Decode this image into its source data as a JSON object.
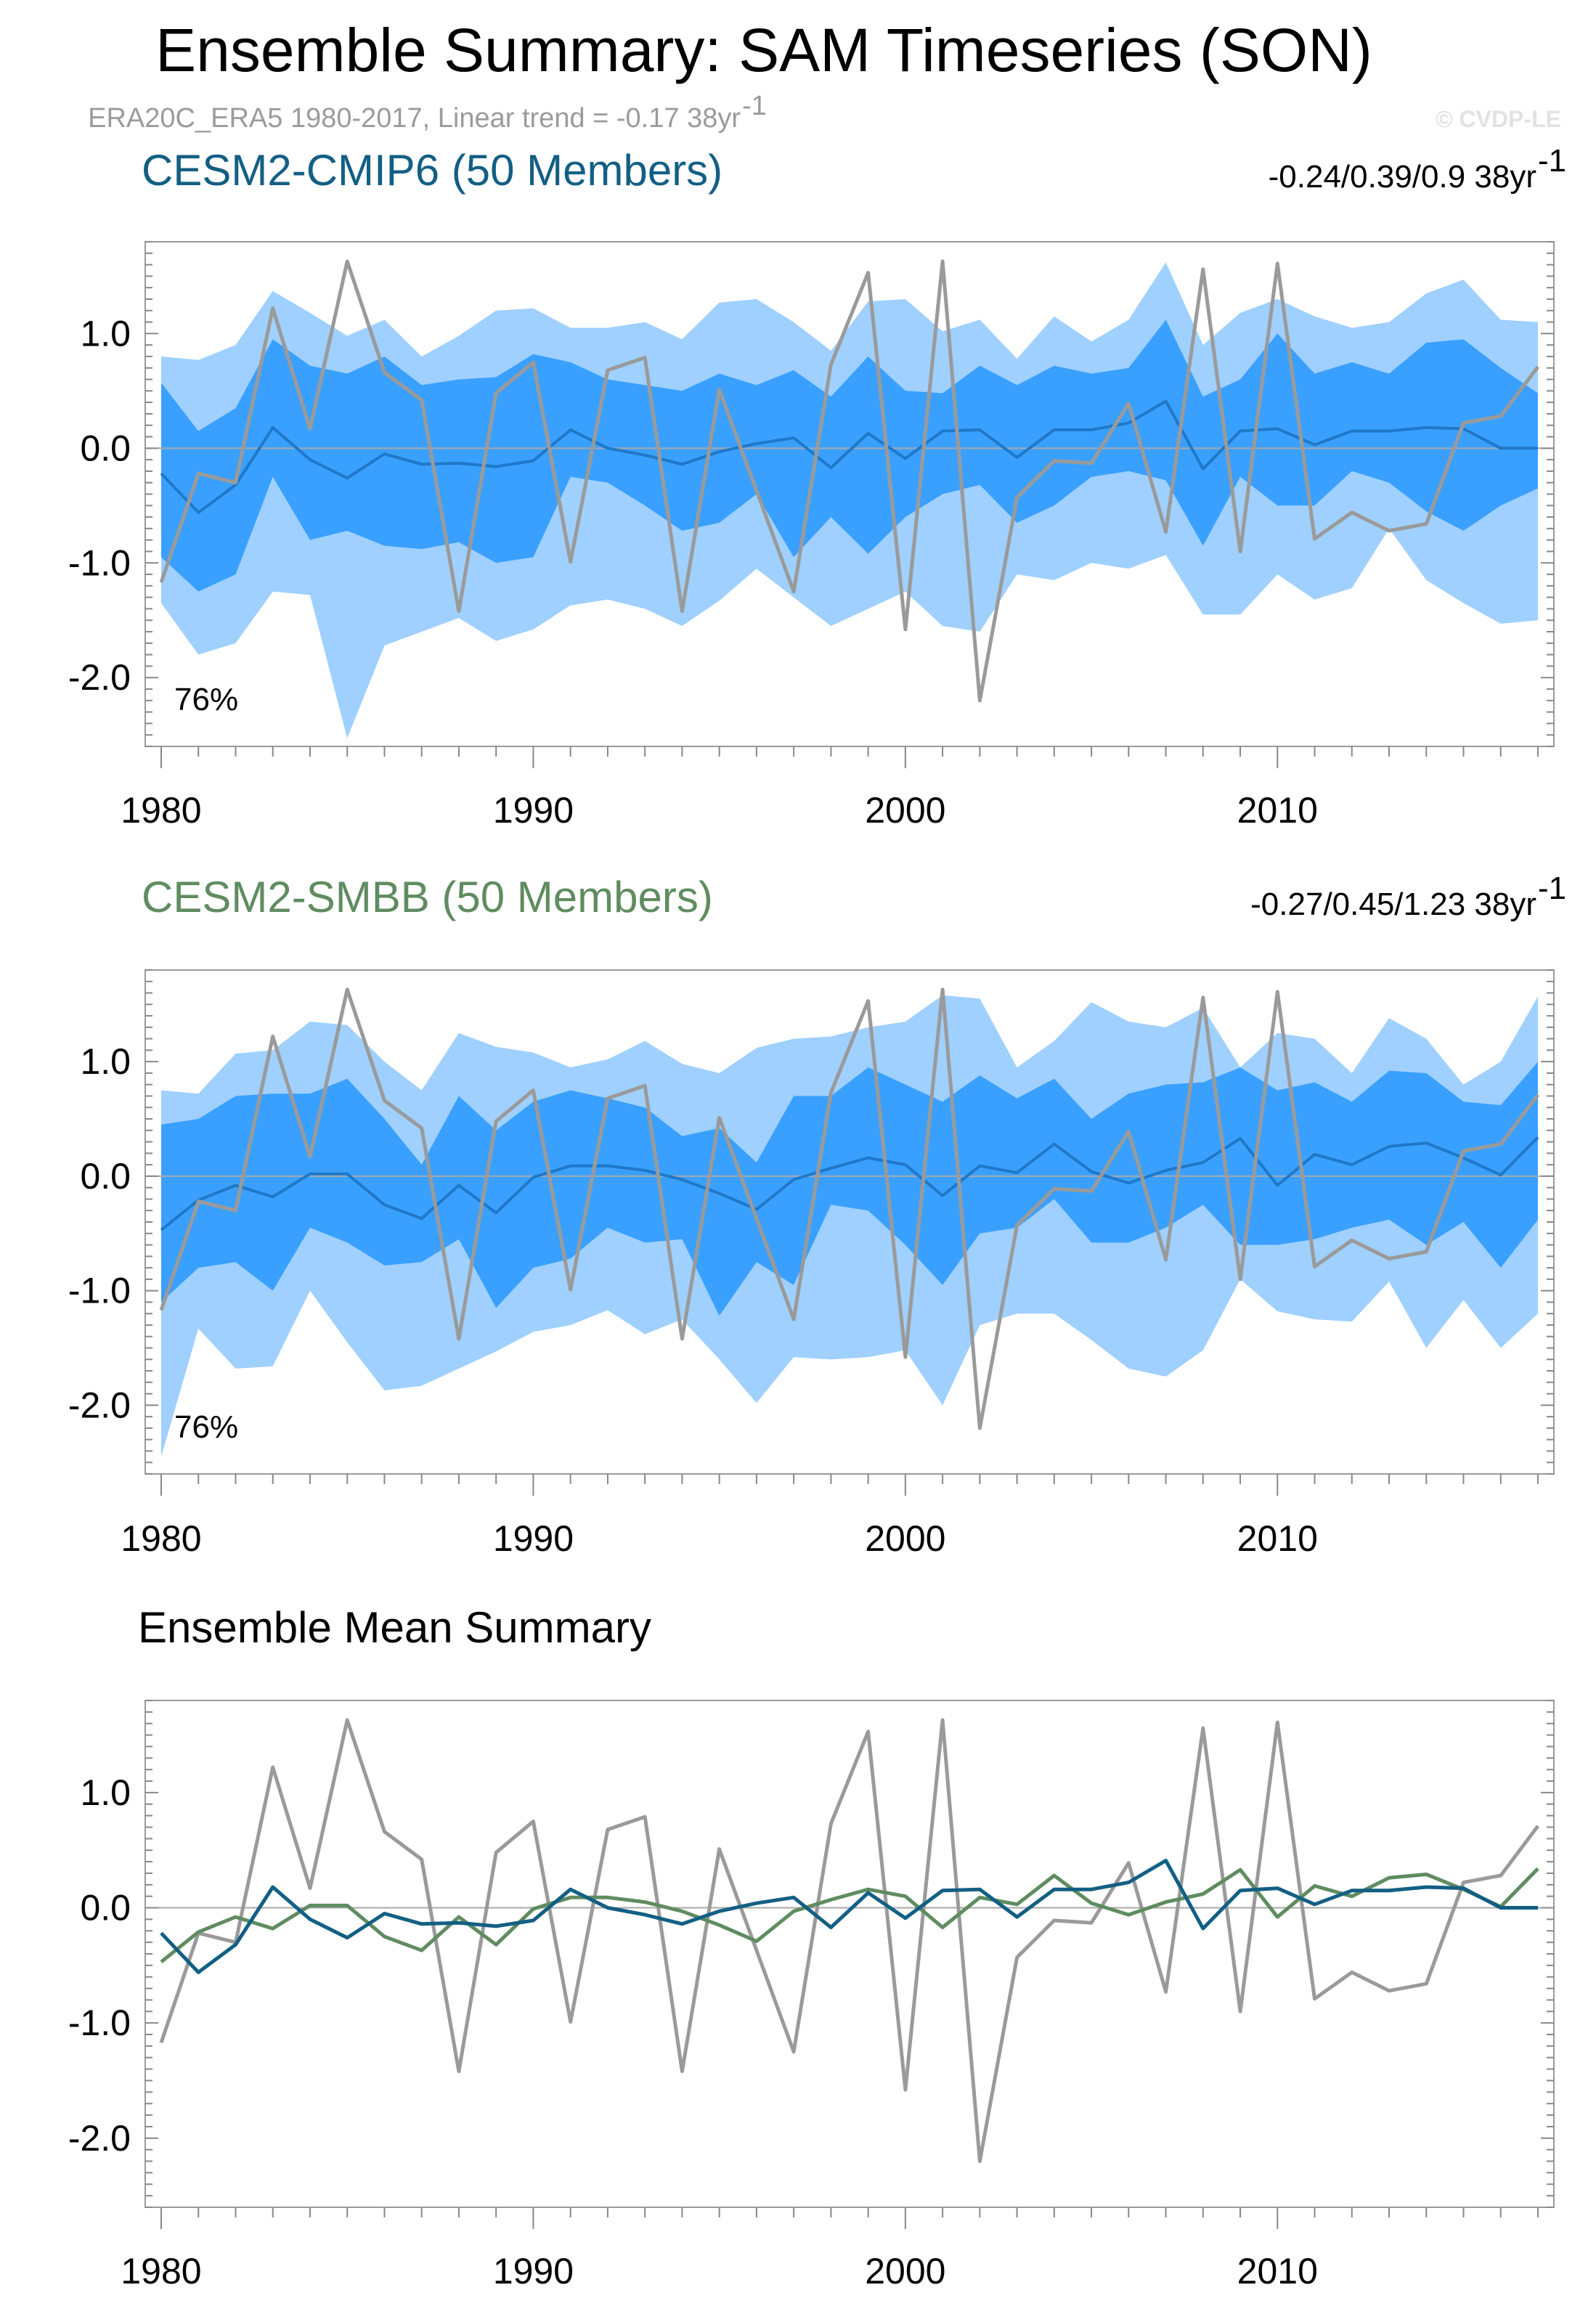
{
  "title": "Ensemble Summary: SAM Timeseries (SON)",
  "subtitle": "ERA20C_ERA5 1980-2017, Linear trend = -0.17 38yr",
  "subtitle_sup": "-1",
  "credit": "© CVDP-LE",
  "colors": {
    "obs": "#9a9a9a",
    "band_outer": "#9fd0ff",
    "band_inner": "#3aa0ff",
    "mean_line": "#1f78c8",
    "cmip6": "#135f84",
    "smbb": "#5f8c60",
    "zero_line": "#a8a8a8"
  },
  "chart_data": [
    {
      "type": "area",
      "title": "CESM2-CMIP6 (50 Members)",
      "title_color": "#135f84",
      "stat": "-0.24/0.39/0.9 38yr",
      "stat_sup": "-1",
      "percent_label": "76%",
      "xlim": [
        1980,
        2017
      ],
      "ylim": [
        -2.6,
        1.8
      ],
      "xticks": [
        "1980",
        "1990",
        "2000",
        "2010"
      ],
      "yticks": [
        "1.0",
        "0.0",
        "-1.0",
        "-2.0"
      ],
      "x": [
        1980,
        1981,
        1982,
        1983,
        1984,
        1985,
        1986,
        1987,
        1988,
        1989,
        1990,
        1991,
        1992,
        1993,
        1994,
        1995,
        1996,
        1997,
        1998,
        1999,
        2000,
        2001,
        2002,
        2003,
        2004,
        2005,
        2006,
        2007,
        2008,
        2009,
        2010,
        2011,
        2012,
        2013,
        2014,
        2015,
        2016,
        2017
      ],
      "series": [
        {
          "name": "min",
          "values": [
            -1.35,
            -1.8,
            -1.7,
            -1.25,
            -1.28,
            -2.53,
            -1.72,
            -1.6,
            -1.48,
            -1.68,
            -1.58,
            -1.37,
            -1.32,
            -1.4,
            -1.55,
            -1.33,
            -1.05,
            -1.3,
            -1.55,
            -1.4,
            -1.25,
            -1.55,
            -1.6,
            -1.1,
            -1.15,
            -1.0,
            -1.05,
            -0.93,
            -1.45,
            -1.45,
            -1.1,
            -1.32,
            -1.22,
            -0.7,
            -1.15,
            -1.35,
            -1.53,
            -1.5
          ]
        },
        {
          "name": "p10",
          "values": [
            -0.95,
            -1.25,
            -1.1,
            -0.25,
            -0.8,
            -0.72,
            -0.85,
            -0.88,
            -0.82,
            -1.0,
            -0.95,
            -0.25,
            -0.3,
            -0.5,
            -0.72,
            -0.65,
            -0.4,
            -0.95,
            -0.6,
            -0.92,
            -0.6,
            -0.4,
            -0.32,
            -0.65,
            -0.5,
            -0.25,
            -0.2,
            -0.28,
            -0.85,
            -0.25,
            -0.5,
            -0.5,
            -0.2,
            -0.3,
            -0.55,
            -0.72,
            -0.5,
            -0.35
          ]
        },
        {
          "name": "mean",
          "values": [
            -0.22,
            -0.56,
            -0.32,
            0.18,
            -0.1,
            -0.26,
            -0.05,
            -0.14,
            -0.13,
            -0.16,
            -0.11,
            0.16,
            0.0,
            -0.06,
            -0.14,
            -0.03,
            0.04,
            0.09,
            -0.17,
            0.13,
            -0.09,
            0.15,
            0.16,
            -0.08,
            0.16,
            0.16,
            0.22,
            0.41,
            -0.18,
            0.15,
            0.17,
            0.03,
            0.15,
            0.15,
            0.18,
            0.17,
            0.0,
            0.0
          ]
        },
        {
          "name": "p90",
          "values": [
            0.57,
            0.15,
            0.35,
            0.95,
            0.72,
            0.65,
            0.8,
            0.55,
            0.6,
            0.62,
            0.82,
            0.75,
            0.6,
            0.55,
            0.5,
            0.65,
            0.55,
            0.68,
            0.45,
            0.8,
            0.5,
            0.48,
            0.72,
            0.55,
            0.72,
            0.65,
            0.7,
            1.12,
            0.45,
            0.6,
            1.0,
            0.65,
            0.75,
            0.65,
            0.92,
            0.95,
            0.7,
            0.48
          ]
        },
        {
          "name": "max",
          "values": [
            0.8,
            0.77,
            0.9,
            1.37,
            1.18,
            0.98,
            1.12,
            0.8,
            0.98,
            1.2,
            1.22,
            1.05,
            1.05,
            1.1,
            0.95,
            1.27,
            1.3,
            1.1,
            0.85,
            1.28,
            1.3,
            1.02,
            1.12,
            0.78,
            1.15,
            0.93,
            1.12,
            1.62,
            0.9,
            1.18,
            1.3,
            1.15,
            1.05,
            1.1,
            1.35,
            1.47,
            1.12,
            1.1
          ]
        },
        {
          "name": "ERA20C_ERA5",
          "values": [
            -1.17,
            -0.22,
            -0.3,
            1.22,
            0.17,
            1.63,
            0.66,
            0.42,
            -1.42,
            0.48,
            0.75,
            -0.99,
            0.68,
            0.79,
            -1.42,
            0.51,
            -0.37,
            -1.25,
            0.73,
            1.53,
            -1.58,
            1.63,
            -2.2,
            -0.43,
            -0.11,
            -0.13,
            0.39,
            -0.73,
            1.56,
            -0.9,
            1.61,
            -0.79,
            -0.56,
            -0.72,
            -0.66,
            0.22,
            0.28,
            0.71
          ]
        }
      ]
    },
    {
      "type": "area",
      "title": "CESM2-SMBB (50 Members)",
      "title_color": "#5f8c60",
      "stat": "-0.27/0.45/1.23 38yr",
      "stat_sup": "-1",
      "percent_label": "76%",
      "xlim": [
        1980,
        2017
      ],
      "ylim": [
        -2.6,
        1.8
      ],
      "xticks": [
        "1980",
        "1990",
        "2000",
        "2010"
      ],
      "yticks": [
        "1.0",
        "0.0",
        "-1.0",
        "-2.0"
      ],
      "x": [
        1980,
        1981,
        1982,
        1983,
        1984,
        1985,
        1986,
        1987,
        1988,
        1989,
        1990,
        1991,
        1992,
        1993,
        1994,
        1995,
        1996,
        1997,
        1998,
        1999,
        2000,
        2001,
        2002,
        2003,
        2004,
        2005,
        2006,
        2007,
        2008,
        2009,
        2010,
        2011,
        2012,
        2013,
        2014,
        2015,
        2016,
        2017
      ],
      "series": [
        {
          "name": "min",
          "values": [
            -2.45,
            -1.33,
            -1.68,
            -1.66,
            -1.0,
            -1.45,
            -1.87,
            -1.83,
            -1.68,
            -1.53,
            -1.36,
            -1.3,
            -1.17,
            -1.38,
            -1.25,
            -1.6,
            -1.98,
            -1.58,
            -1.6,
            -1.58,
            -1.52,
            -2.0,
            -1.3,
            -1.2,
            -1.2,
            -1.43,
            -1.68,
            -1.75,
            -1.52,
            -0.9,
            -1.18,
            -1.25,
            -1.27,
            -0.92,
            -1.5,
            -1.08,
            -1.5,
            -1.2
          ]
        },
        {
          "name": "p10",
          "values": [
            -1.1,
            -0.8,
            -0.75,
            -1.0,
            -0.45,
            -0.58,
            -0.78,
            -0.75,
            -0.55,
            -1.15,
            -0.8,
            -0.72,
            -0.45,
            -0.58,
            -0.55,
            -1.22,
            -0.75,
            -0.95,
            -0.25,
            -0.3,
            -0.6,
            -0.95,
            -0.5,
            -0.45,
            -0.2,
            -0.58,
            -0.58,
            -0.45,
            -0.25,
            -0.6,
            -0.6,
            -0.55,
            -0.45,
            -0.38,
            -0.6,
            -0.4,
            -0.8,
            -0.38
          ]
        },
        {
          "name": "mean",
          "values": [
            -0.47,
            -0.21,
            -0.08,
            -0.18,
            0.02,
            0.02,
            -0.25,
            -0.37,
            -0.08,
            -0.32,
            -0.01,
            0.09,
            0.09,
            0.05,
            -0.03,
            -0.15,
            -0.29,
            -0.03,
            0.07,
            0.16,
            0.1,
            -0.17,
            0.09,
            0.03,
            0.28,
            0.04,
            -0.06,
            0.05,
            0.12,
            0.33,
            -0.08,
            0.19,
            0.1,
            0.26,
            0.29,
            0.16,
            0.01,
            0.34
          ]
        },
        {
          "name": "p90",
          "values": [
            0.45,
            0.5,
            0.7,
            0.72,
            0.72,
            0.85,
            0.5,
            0.1,
            0.7,
            0.4,
            0.65,
            0.75,
            0.68,
            0.6,
            0.35,
            0.42,
            0.12,
            0.7,
            0.7,
            0.95,
            0.8,
            0.65,
            0.88,
            0.68,
            0.85,
            0.5,
            0.72,
            0.8,
            0.82,
            0.95,
            0.75,
            0.82,
            0.65,
            0.92,
            0.9,
            0.65,
            0.62,
            1.0
          ]
        },
        {
          "name": "max",
          "values": [
            0.75,
            0.72,
            1.07,
            1.1,
            1.35,
            1.32,
            1.0,
            0.75,
            1.25,
            1.13,
            1.08,
            0.95,
            1.02,
            1.18,
            0.98,
            0.9,
            1.12,
            1.2,
            1.22,
            1.3,
            1.35,
            1.58,
            1.55,
            0.95,
            1.18,
            1.52,
            1.35,
            1.3,
            1.47,
            0.95,
            1.25,
            1.2,
            0.9,
            1.38,
            1.2,
            0.8,
            1.0,
            1.57
          ]
        },
        {
          "name": "ERA20C_ERA5",
          "values": [
            -1.17,
            -0.22,
            -0.3,
            1.22,
            0.17,
            1.63,
            0.66,
            0.42,
            -1.42,
            0.48,
            0.75,
            -0.99,
            0.68,
            0.79,
            -1.42,
            0.51,
            -0.37,
            -1.25,
            0.73,
            1.53,
            -1.58,
            1.63,
            -2.2,
            -0.43,
            -0.11,
            -0.13,
            0.39,
            -0.73,
            1.56,
            -0.9,
            1.61,
            -0.79,
            -0.56,
            -0.72,
            -0.66,
            0.22,
            0.28,
            0.71
          ]
        }
      ]
    },
    {
      "type": "line",
      "title": "Ensemble Mean Summary",
      "title_color": "#000000",
      "xlim": [
        1980,
        2017
      ],
      "ylim": [
        -2.6,
        1.8
      ],
      "xticks": [
        "1980",
        "1990",
        "2000",
        "2010"
      ],
      "yticks": [
        "1.0",
        "0.0",
        "-1.0",
        "-2.0"
      ],
      "x": [
        1980,
        1981,
        1982,
        1983,
        1984,
        1985,
        1986,
        1987,
        1988,
        1989,
        1990,
        1991,
        1992,
        1993,
        1994,
        1995,
        1996,
        1997,
        1998,
        1999,
        2000,
        2001,
        2002,
        2003,
        2004,
        2005,
        2006,
        2007,
        2008,
        2009,
        2010,
        2011,
        2012,
        2013,
        2014,
        2015,
        2016,
        2017
      ],
      "series": [
        {
          "name": "ERA20C_ERA5",
          "values": [
            -1.17,
            -0.22,
            -0.3,
            1.22,
            0.17,
            1.63,
            0.66,
            0.42,
            -1.42,
            0.48,
            0.75,
            -0.99,
            0.68,
            0.79,
            -1.42,
            0.51,
            -0.37,
            -1.25,
            0.73,
            1.53,
            -1.58,
            1.63,
            -2.2,
            -0.43,
            -0.11,
            -0.13,
            0.39,
            -0.73,
            1.56,
            -0.9,
            1.61,
            -0.79,
            -0.56,
            -0.72,
            -0.66,
            0.22,
            0.28,
            0.71
          ]
        },
        {
          "name": "CESM2-SMBB",
          "values": [
            -0.47,
            -0.21,
            -0.08,
            -0.18,
            0.02,
            0.02,
            -0.25,
            -0.37,
            -0.08,
            -0.32,
            -0.01,
            0.09,
            0.09,
            0.05,
            -0.03,
            -0.15,
            -0.29,
            -0.03,
            0.07,
            0.16,
            0.1,
            -0.17,
            0.09,
            0.03,
            0.28,
            0.04,
            -0.06,
            0.05,
            0.12,
            0.33,
            -0.08,
            0.19,
            0.1,
            0.26,
            0.29,
            0.16,
            0.01,
            0.34
          ]
        },
        {
          "name": "CESM2-CMIP6",
          "values": [
            -0.22,
            -0.56,
            -0.32,
            0.18,
            -0.1,
            -0.26,
            -0.05,
            -0.14,
            -0.13,
            -0.16,
            -0.11,
            0.16,
            0.0,
            -0.06,
            -0.14,
            -0.03,
            0.04,
            0.09,
            -0.17,
            0.13,
            -0.09,
            0.15,
            0.16,
            -0.08,
            0.16,
            0.16,
            0.22,
            0.41,
            -0.18,
            0.15,
            0.17,
            0.03,
            0.15,
            0.15,
            0.18,
            0.17,
            0.0,
            0.0
          ]
        }
      ]
    }
  ]
}
